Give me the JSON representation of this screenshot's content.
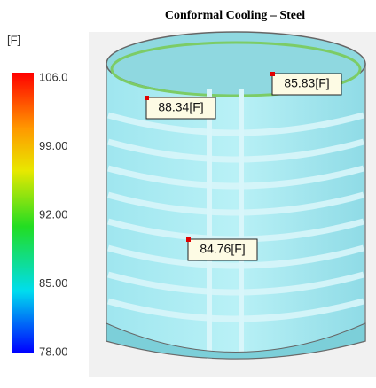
{
  "title": "Conformal Cooling – Steel",
  "legend": {
    "unit": "[F]",
    "ticks": [
      "106.0",
      "99.00",
      "92.00",
      "85.00",
      "78.00"
    ]
  },
  "probes": [
    "88.34[F]",
    "85.83[F]",
    "84.76[F]"
  ]
}
